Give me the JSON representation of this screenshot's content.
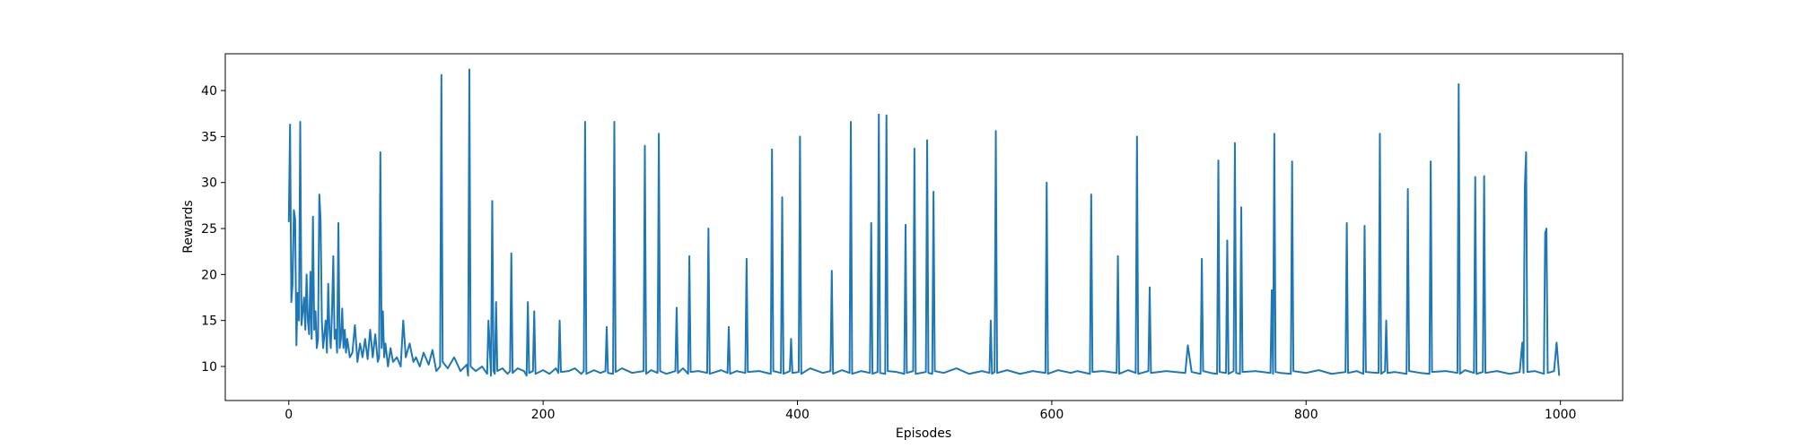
{
  "chart_data": {
    "type": "line",
    "xlabel": "Episodes",
    "ylabel": "Rewards",
    "color": "#1f77b4",
    "xlim": [
      -49.95,
      1048.95
    ],
    "ylim": [
      6.3,
      44.0
    ],
    "xticks": [
      0,
      200,
      400,
      600,
      800,
      1000
    ],
    "yticks": [
      10,
      15,
      20,
      25,
      30,
      35,
      40
    ],
    "x": [
      0,
      1,
      2,
      3,
      4,
      5,
      6,
      7,
      8,
      9,
      10,
      11,
      12,
      13,
      14,
      15,
      16,
      17,
      18,
      19,
      20,
      21,
      22,
      23,
      24,
      25,
      26,
      27,
      28,
      29,
      30,
      31,
      32,
      33,
      34,
      35,
      36,
      37,
      38,
      39,
      40,
      41,
      42,
      43,
      44,
      45,
      46,
      47,
      48,
      50,
      52,
      54,
      56,
      58,
      60,
      62,
      64,
      66,
      68,
      70,
      71,
      72,
      73,
      74,
      75,
      76,
      78,
      80,
      82,
      85,
      88,
      90,
      92,
      95,
      98,
      100,
      103,
      106,
      110,
      113,
      116,
      119,
      120,
      121,
      125,
      130,
      135,
      140,
      141,
      142,
      143,
      147,
      152,
      156,
      157,
      159,
      160,
      161,
      162,
      163,
      164,
      168,
      172,
      174,
      175,
      176,
      180,
      185,
      187,
      188,
      189,
      192,
      193,
      194,
      200,
      205,
      210,
      212,
      213,
      214,
      220,
      225,
      230,
      232,
      233,
      234,
      240,
      245,
      249,
      250,
      251,
      255,
      256,
      257,
      262,
      270,
      279,
      280,
      281,
      285,
      290,
      291,
      292,
      297,
      304,
      305,
      306,
      310,
      314,
      315,
      316,
      322,
      329,
      330,
      331,
      340,
      345,
      346,
      347,
      352,
      359,
      360,
      361,
      370,
      379,
      380,
      381,
      387,
      388,
      389,
      394,
      395,
      396,
      401,
      402,
      403,
      410,
      420,
      426,
      427,
      428,
      435,
      441,
      442,
      443,
      450,
      457,
      458,
      459,
      463,
      464,
      465,
      469,
      470,
      471,
      478,
      484,
      485,
      486,
      491,
      492,
      493,
      501,
      502,
      503,
      506,
      507,
      508,
      515,
      525,
      535,
      545,
      551,
      552,
      553,
      555,
      556,
      557,
      565,
      575,
      585,
      595,
      596,
      597,
      605,
      615,
      620,
      630,
      631,
      632,
      640,
      651,
      652,
      653,
      660,
      666,
      667,
      668,
      676,
      677,
      678,
      690,
      705,
      707,
      710,
      717,
      718,
      719,
      725,
      730,
      731,
      732,
      737,
      738,
      739,
      743,
      744,
      745,
      748,
      749,
      750,
      760,
      772,
      773,
      774,
      775,
      776,
      780,
      788,
      789,
      790,
      800,
      810,
      820,
      831,
      832,
      833,
      840,
      845,
      846,
      847,
      857,
      858,
      859,
      862,
      863,
      864,
      870,
      879,
      880,
      881,
      890,
      897,
      898,
      899,
      910,
      919,
      920,
      921,
      925,
      932,
      933,
      934,
      939,
      940,
      941,
      950,
      960,
      968,
      970,
      971,
      972,
      973,
      974,
      980,
      987,
      988,
      989,
      990,
      995,
      997,
      999
    ],
    "values": [
      25.7,
      36.3,
      17,
      19,
      27,
      26,
      12.3,
      18,
      15,
      36.6,
      14.5,
      16,
      17.5,
      14,
      20,
      15,
      13.5,
      20.3,
      13,
      26.3,
      14,
      16,
      12,
      13,
      28.7,
      26,
      15,
      12,
      13.5,
      15,
      11.5,
      19,
      14,
      12,
      16,
      22,
      13,
      14,
      11.5,
      25.6,
      12,
      13,
      16.3,
      12,
      14,
      11.5,
      13,
      12,
      11,
      11.5,
      14.5,
      10.5,
      12.5,
      11,
      13,
      10.8,
      14,
      11,
      13.5,
      10.5,
      11,
      33.3,
      12,
      16,
      11,
      12.5,
      10,
      12,
      10.5,
      11,
      10,
      15,
      11,
      12.5,
      10.5,
      11,
      10,
      11.5,
      10.2,
      11.8,
      9.5,
      10,
      41.7,
      10.5,
      9.8,
      11,
      9.5,
      10.2,
      9,
      42.3,
      10,
      9.5,
      10,
      9.2,
      15,
      9,
      28,
      9.5,
      9.2,
      17,
      9.5,
      9.8,
      9.2,
      9.5,
      22.3,
      9.3,
      9.8,
      9.5,
      9,
      17,
      9.3,
      9.5,
      16,
      9.2,
      9.6,
      9.2,
      9.8,
      9.3,
      15,
      9.4,
      9.5,
      9.8,
      9.2,
      9.5,
      36.6,
      9.2,
      9.6,
      9.3,
      9.5,
      14.3,
      9.3,
      9.2,
      36.6,
      9.4,
      9.8,
      9.3,
      9.5,
      34,
      9.2,
      9.6,
      9.3,
      35.3,
      9.5,
      9.2,
      9.5,
      16.4,
      9.3,
      9.8,
      9.2,
      22,
      9.4,
      9.5,
      9.3,
      25,
      9.2,
      9.6,
      9.3,
      14.3,
      9.2,
      9.5,
      9.3,
      21.7,
      9.4,
      9.5,
      9.2,
      33.6,
      9.5,
      9.3,
      28.4,
      9.2,
      9.5,
      13,
      9.3,
      9.4,
      35,
      9.2,
      9.8,
      9.3,
      9.5,
      20.4,
      9.2,
      9.6,
      9.3,
      36.6,
      9.2,
      9.5,
      9.3,
      25.6,
      9.2,
      9.4,
      37.4,
      9.3,
      9.2,
      37.3,
      9.5,
      9.4,
      9.2,
      25.4,
      9.3,
      9.5,
      33.7,
      9.2,
      9.4,
      34.6,
      9.3,
      9.2,
      29,
      9.5,
      9.3,
      9.8,
      9.2,
      9.5,
      9.3,
      15,
      9.2,
      9.4,
      35.6,
      9.3,
      9.6,
      9.2,
      9.5,
      9.3,
      30,
      9.2,
      9.6,
      9.3,
      9.5,
      9.2,
      28.7,
      9.4,
      9.5,
      9.3,
      22,
      9.2,
      9.6,
      9.3,
      35,
      9.2,
      9.5,
      18.6,
      9.3,
      9.5,
      9.3,
      12.3,
      9.4,
      9.2,
      21.7,
      9.5,
      9.3,
      9.2,
      32.4,
      9.4,
      9.3,
      23.7,
      9.2,
      9.5,
      34.3,
      9.3,
      9.2,
      27.3,
      9.4,
      9.5,
      9.3,
      18.3,
      9.2,
      35.3,
      9.4,
      9.3,
      9.2,
      32.3,
      9.5,
      9.3,
      9.6,
      9.2,
      9.4,
      25.6,
      9.3,
      9.5,
      9.2,
      25.3,
      9.4,
      9.3,
      35.3,
      9.2,
      9.5,
      15,
      9.3,
      9.4,
      9.2,
      29.3,
      9.5,
      9.3,
      9.2,
      32.3,
      9.4,
      9.5,
      9.3,
      40.7,
      9.2,
      9.6,
      9.3,
      30.6,
      9.2,
      9.4,
      30.7,
      9.3,
      9.5,
      9.2,
      9.4,
      12.6,
      9.3,
      29.5,
      33.3,
      9.4,
      9.5,
      9.2,
      24.5,
      25,
      9.3,
      9.5,
      12.6,
      9
    ]
  }
}
